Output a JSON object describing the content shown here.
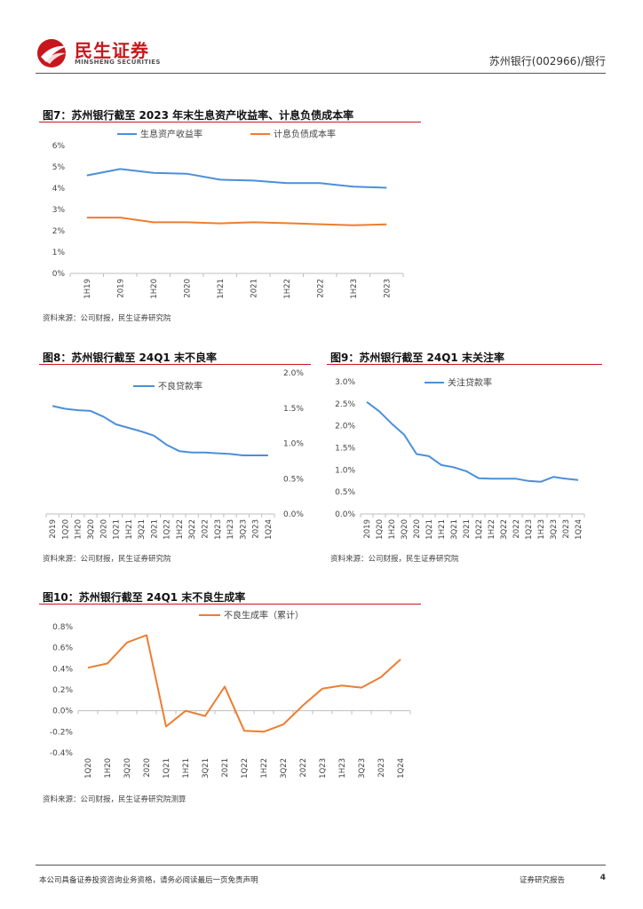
{
  "header": {
    "logo_cn": "民生证券",
    "logo_en": "MINSHENG SECURITIES",
    "report_ref": "苏州银行(002966)/银行"
  },
  "footer": {
    "disclaimer": "本公司具备证券投资咨询业务资格，请务必阅读最后一页免责声明",
    "report_type": "证券研究报告",
    "page_number": "4"
  },
  "colors": {
    "blue": "#4a90d9",
    "orange": "#ed7d31",
    "brand_red": "#c8161d"
  },
  "figures": [
    {
      "title": "图7：苏州银行截至 2023 年末生息资产收益率、计息负债成本率",
      "source": "资料来源：公司财报，民生证券研究院"
    },
    {
      "title": "图8：苏州银行截至 24Q1 末不良率",
      "source": "资料来源：公司财报，民生证券研究院"
    },
    {
      "title": "图9：苏州银行截至 24Q1 末关注率",
      "source": "资料来源：公司财报，民生证券研究院"
    },
    {
      "title": "图10：苏州银行截至 24Q1 末不良生成率",
      "source": "资料来源：公司财报，民生证券研究院测算"
    }
  ],
  "chart_data": [
    {
      "type": "line",
      "categories": [
        "1H19",
        "2019",
        "1H20",
        "2020",
        "1H21",
        "2021",
        "1H22",
        "2022",
        "1H23",
        "2023"
      ],
      "series": [
        {
          "name": "生息资产收益率",
          "color": "#4a90d9",
          "values": [
            4.6,
            4.9,
            4.72,
            4.68,
            4.4,
            4.36,
            4.24,
            4.24,
            4.07,
            4.02
          ]
        },
        {
          "name": "计息负债成本率",
          "color": "#ed7d31",
          "values": [
            2.62,
            2.62,
            2.4,
            2.4,
            2.35,
            2.4,
            2.36,
            2.31,
            2.26,
            2.3
          ]
        }
      ],
      "ylim": [
        0,
        6
      ],
      "yticks": [
        "0%",
        "1%",
        "2%",
        "3%",
        "4%",
        "5%",
        "6%"
      ],
      "legend": "top"
    },
    {
      "type": "line",
      "categories": [
        "2019",
        "1Q20",
        "1H20",
        "3Q20",
        "2020",
        "1Q21",
        "1H21",
        "3Q21",
        "2021",
        "1Q22",
        "1H22",
        "3Q22",
        "2022",
        "1Q23",
        "1H23",
        "3Q23",
        "2023",
        "1Q24"
      ],
      "series": [
        {
          "name": "不良贷款率",
          "color": "#4a90d9",
          "values": [
            1.53,
            1.49,
            1.47,
            1.46,
            1.38,
            1.27,
            1.22,
            1.17,
            1.11,
            0.98,
            0.89,
            0.87,
            0.87,
            0.86,
            0.85,
            0.83,
            0.83,
            0.83
          ]
        }
      ],
      "ylim": [
        0,
        2.0
      ],
      "yticks": [
        "0.0%",
        "0.5%",
        "1.0%",
        "1.5%",
        "2.0%"
      ],
      "y_axis_side": "right",
      "legend": "top-left"
    },
    {
      "type": "line",
      "categories": [
        "2019",
        "1Q20",
        "1H20",
        "3Q20",
        "2020",
        "1Q21",
        "1H21",
        "3Q21",
        "2021",
        "1Q22",
        "1H22",
        "3Q22",
        "2022",
        "1Q23",
        "1H23",
        "3Q23",
        "2023",
        "1Q24"
      ],
      "series": [
        {
          "name": "关注贷款率",
          "color": "#4a90d9",
          "values": [
            2.54,
            2.33,
            2.05,
            1.8,
            1.36,
            1.31,
            1.11,
            1.06,
            0.97,
            0.81,
            0.8,
            0.8,
            0.8,
            0.75,
            0.73,
            0.84,
            0.8,
            0.77
          ]
        }
      ],
      "ylim": [
        0,
        3.0
      ],
      "yticks": [
        "0.0%",
        "0.5%",
        "1.0%",
        "1.5%",
        "2.0%",
        "2.5%",
        "3.0%"
      ],
      "legend": "top-right"
    },
    {
      "type": "line",
      "categories": [
        "1Q20",
        "1H20",
        "3Q20",
        "2020",
        "1Q21",
        "1H21",
        "3Q21",
        "2021",
        "1Q22",
        "1H22",
        "3Q22",
        "2022",
        "1Q23",
        "1H23",
        "3Q23",
        "2023",
        "1Q24"
      ],
      "series": [
        {
          "name": "不良生成率（累计）",
          "color": "#ed7d31",
          "values": [
            0.41,
            0.45,
            0.65,
            0.72,
            -0.15,
            0.0,
            -0.05,
            0.23,
            -0.19,
            -0.2,
            -0.13,
            0.05,
            0.21,
            0.24,
            0.22,
            0.32,
            0.49
          ]
        }
      ],
      "ylim": [
        -0.4,
        0.8
      ],
      "yticks": [
        "-0.4%",
        "-0.2%",
        "0.0%",
        "0.2%",
        "0.4%",
        "0.6%",
        "0.8%"
      ],
      "legend": "top"
    }
  ]
}
